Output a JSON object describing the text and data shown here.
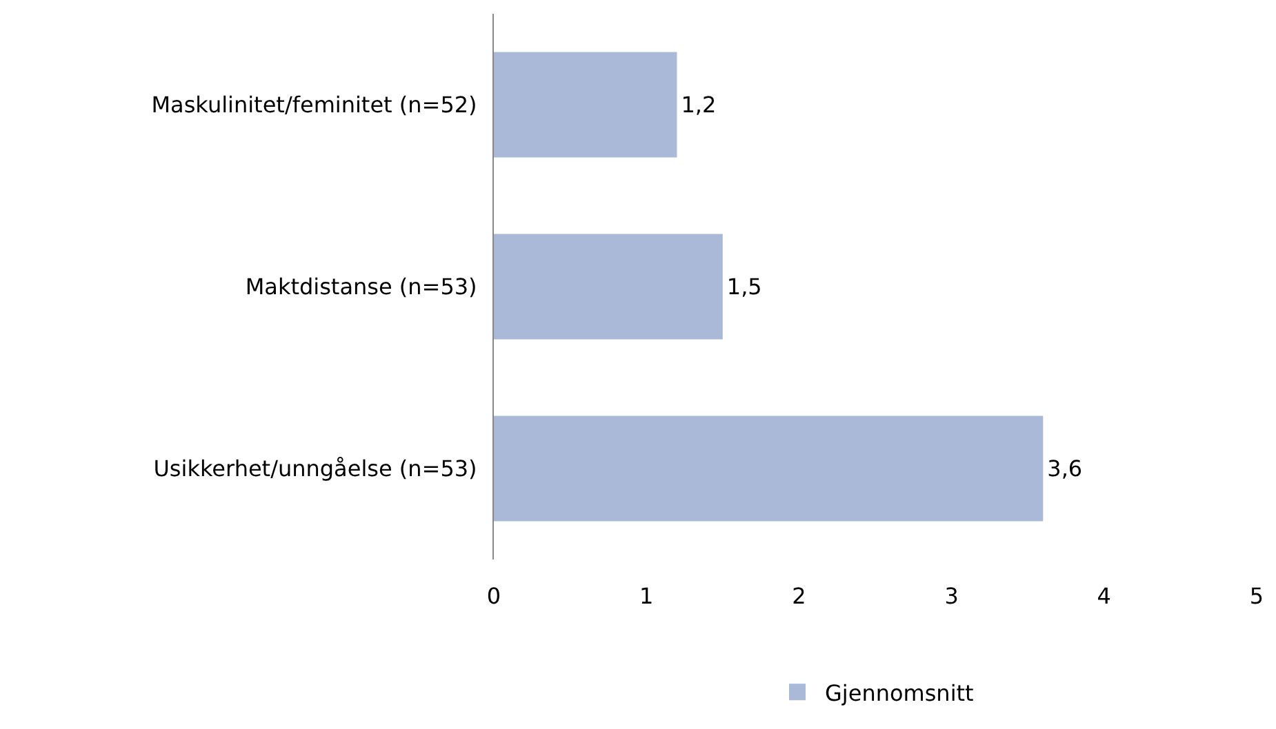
{
  "chart_data": {
    "type": "bar",
    "orientation": "horizontal",
    "categories": [
      "Maskulinitet/feminitet (n=52)",
      "Maktdistanse (n=53)",
      "Usikkerhet/unngåelse (n=53)"
    ],
    "series": [
      {
        "name": "Gjennomsnitt",
        "color": "#aab9d8",
        "values": [
          1.2,
          1.5,
          3.6
        ],
        "value_labels": [
          "1,2",
          "1,5",
          "3,6"
        ]
      }
    ],
    "xlim": [
      0,
      5
    ],
    "xticks": [
      0,
      1,
      2,
      3,
      4,
      5
    ],
    "legend": "bottom"
  }
}
